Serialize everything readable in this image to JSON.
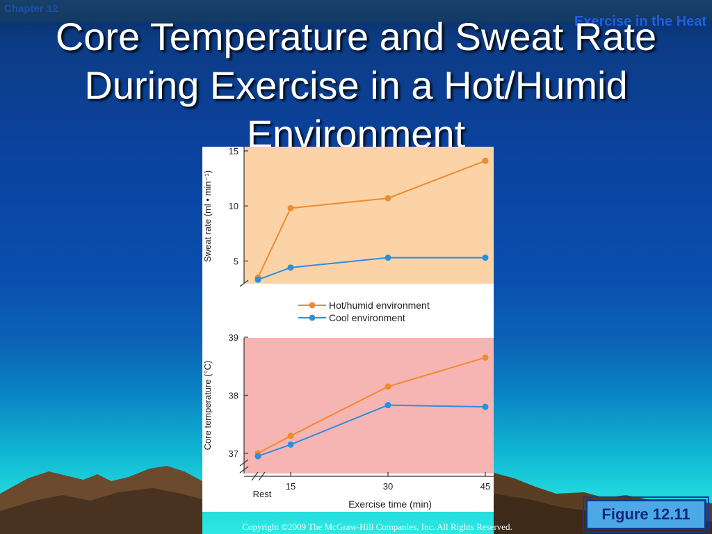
{
  "header": {
    "chapter": "Chapter 12",
    "section": "Exercise in the Heat"
  },
  "slide": {
    "title": "Core Temperature and Sweat Rate During Exercise in a Hot/Humid Environment",
    "figure_label": "Figure 12.11",
    "copyright": "Copyright ©2009 The McGraw-Hill Companies, Inc. All Rights Reserved."
  },
  "colors": {
    "hot_series": "#ef8a2e",
    "cool_series": "#2a8fe0",
    "top_panel_bg": "#fbd3a6",
    "bottom_panel_bg": "#f6b4b2"
  },
  "chart_data": [
    {
      "type": "line",
      "panel": "top",
      "ylabel": "Sweat rate (ml • min⁻¹)",
      "ylim": [
        3,
        15
      ],
      "yticks": [
        5,
        10,
        15
      ],
      "x": [
        "Rest",
        15,
        30,
        45
      ],
      "series": [
        {
          "name": "Hot/humid environment",
          "values": [
            3.5,
            9.8,
            10.7,
            14.1
          ]
        },
        {
          "name": "Cool environment",
          "values": [
            3.3,
            4.4,
            5.3,
            5.3
          ]
        }
      ]
    },
    {
      "type": "line",
      "panel": "bottom",
      "ylabel": "Core temperature (°C)",
      "ylim": [
        36.7,
        39
      ],
      "yticks": [
        37,
        38,
        39
      ],
      "xlabel": "Exercise time (min)",
      "xticks": [
        "Rest",
        "15",
        "30",
        "45"
      ],
      "x": [
        "Rest",
        15,
        30,
        45
      ],
      "series": [
        {
          "name": "Hot/humid environment",
          "values": [
            37.0,
            37.3,
            38.15,
            38.65
          ]
        },
        {
          "name": "Cool environment",
          "values": [
            36.95,
            37.15,
            37.83,
            37.8
          ]
        }
      ]
    }
  ]
}
